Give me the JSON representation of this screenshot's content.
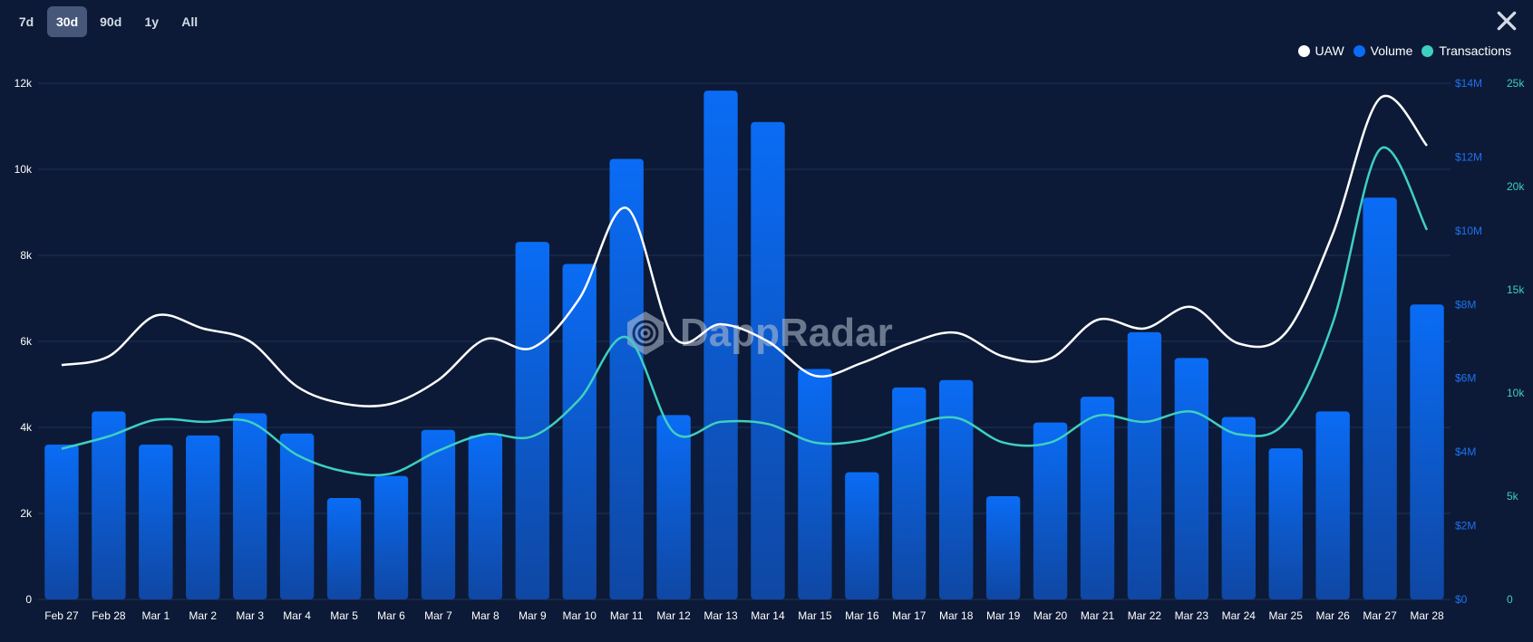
{
  "range_tabs": [
    {
      "label": "7d",
      "active": false
    },
    {
      "label": "30d",
      "active": true
    },
    {
      "label": "90d",
      "active": false
    },
    {
      "label": "1y",
      "active": false
    },
    {
      "label": "All",
      "active": false
    }
  ],
  "close_icon": "close-icon",
  "watermark": "DappRadar",
  "legend": [
    {
      "label": "UAW",
      "color": "#ffffff"
    },
    {
      "label": "Volume",
      "color": "#0a6cf5"
    },
    {
      "label": "Transactions",
      "color": "#3fcfc1"
    }
  ],
  "colors": {
    "background": "#0c1a37",
    "grid": "#1f3254",
    "uaw": "#ffffff",
    "volume_top": "#0a6cf5",
    "volume_bottom": "#0f47a3",
    "transactions": "#3fcfc1"
  },
  "chart_data": {
    "type": "bar",
    "categories": [
      "Feb 27",
      "Feb 28",
      "Mar 1",
      "Mar 2",
      "Mar 3",
      "Mar 4",
      "Mar 5",
      "Mar 6",
      "Mar 7",
      "Mar 8",
      "Mar 9",
      "Mar 10",
      "Mar 11",
      "Mar 12",
      "Mar 13",
      "Mar 14",
      "Mar 15",
      "Mar 16",
      "Mar 17",
      "Mar 18",
      "Mar 19",
      "Mar 20",
      "Mar 21",
      "Mar 22",
      "Mar 23",
      "Mar 24",
      "Mar 25",
      "Mar 26",
      "Mar 27",
      "Mar 28"
    ],
    "series": [
      {
        "name": "Volume",
        "type": "bar",
        "axis": "right-volume",
        "color": "#0a6cf5",
        "values": [
          4.2,
          5.1,
          4.2,
          4.45,
          5.05,
          4.5,
          2.75,
          3.35,
          4.6,
          4.45,
          9.7,
          9.1,
          11.95,
          5.0,
          13.8,
          12.95,
          6.25,
          3.45,
          5.75,
          5.95,
          2.8,
          4.8,
          5.5,
          7.25,
          6.55,
          4.95,
          4.1,
          5.1,
          10.9,
          8.0
        ]
      },
      {
        "name": "UAW",
        "type": "line",
        "axis": "left",
        "color": "#ffffff",
        "values": [
          5450,
          5650,
          6600,
          6300,
          6000,
          4950,
          4550,
          4550,
          5100,
          6050,
          5850,
          7000,
          9100,
          6100,
          6400,
          6000,
          5200,
          5500,
          5950,
          6200,
          5650,
          5600,
          6500,
          6300,
          6800,
          5950,
          6200,
          8500,
          11650,
          10550
        ]
      },
      {
        "name": "Transactions",
        "type": "line",
        "axis": "right-transactions",
        "color": "#3fcfc1",
        "values": [
          7300,
          7900,
          8700,
          8600,
          8600,
          7000,
          6200,
          6100,
          7200,
          8000,
          7900,
          9700,
          12700,
          8100,
          8600,
          8500,
          7600,
          7700,
          8400,
          8800,
          7600,
          7600,
          8900,
          8600,
          9100,
          8000,
          8600,
          13400,
          21800,
          17900
        ]
      }
    ],
    "y_left": {
      "ticks": [
        "0",
        "2k",
        "4k",
        "6k",
        "8k",
        "10k",
        "12k"
      ],
      "range": [
        0,
        12000
      ]
    },
    "y_right_volume": {
      "ticks": [
        "$0",
        "$2M",
        "$4M",
        "$6M",
        "$8M",
        "$10M",
        "$12M",
        "$14M"
      ],
      "range": [
        0,
        14
      ],
      "unit": "$M"
    },
    "y_right_transactions": {
      "ticks": [
        "0",
        "5k",
        "10k",
        "15k",
        "20k",
        "25k"
      ],
      "range": [
        0,
        25000
      ]
    },
    "grid": true,
    "legend_position": "top-right"
  }
}
